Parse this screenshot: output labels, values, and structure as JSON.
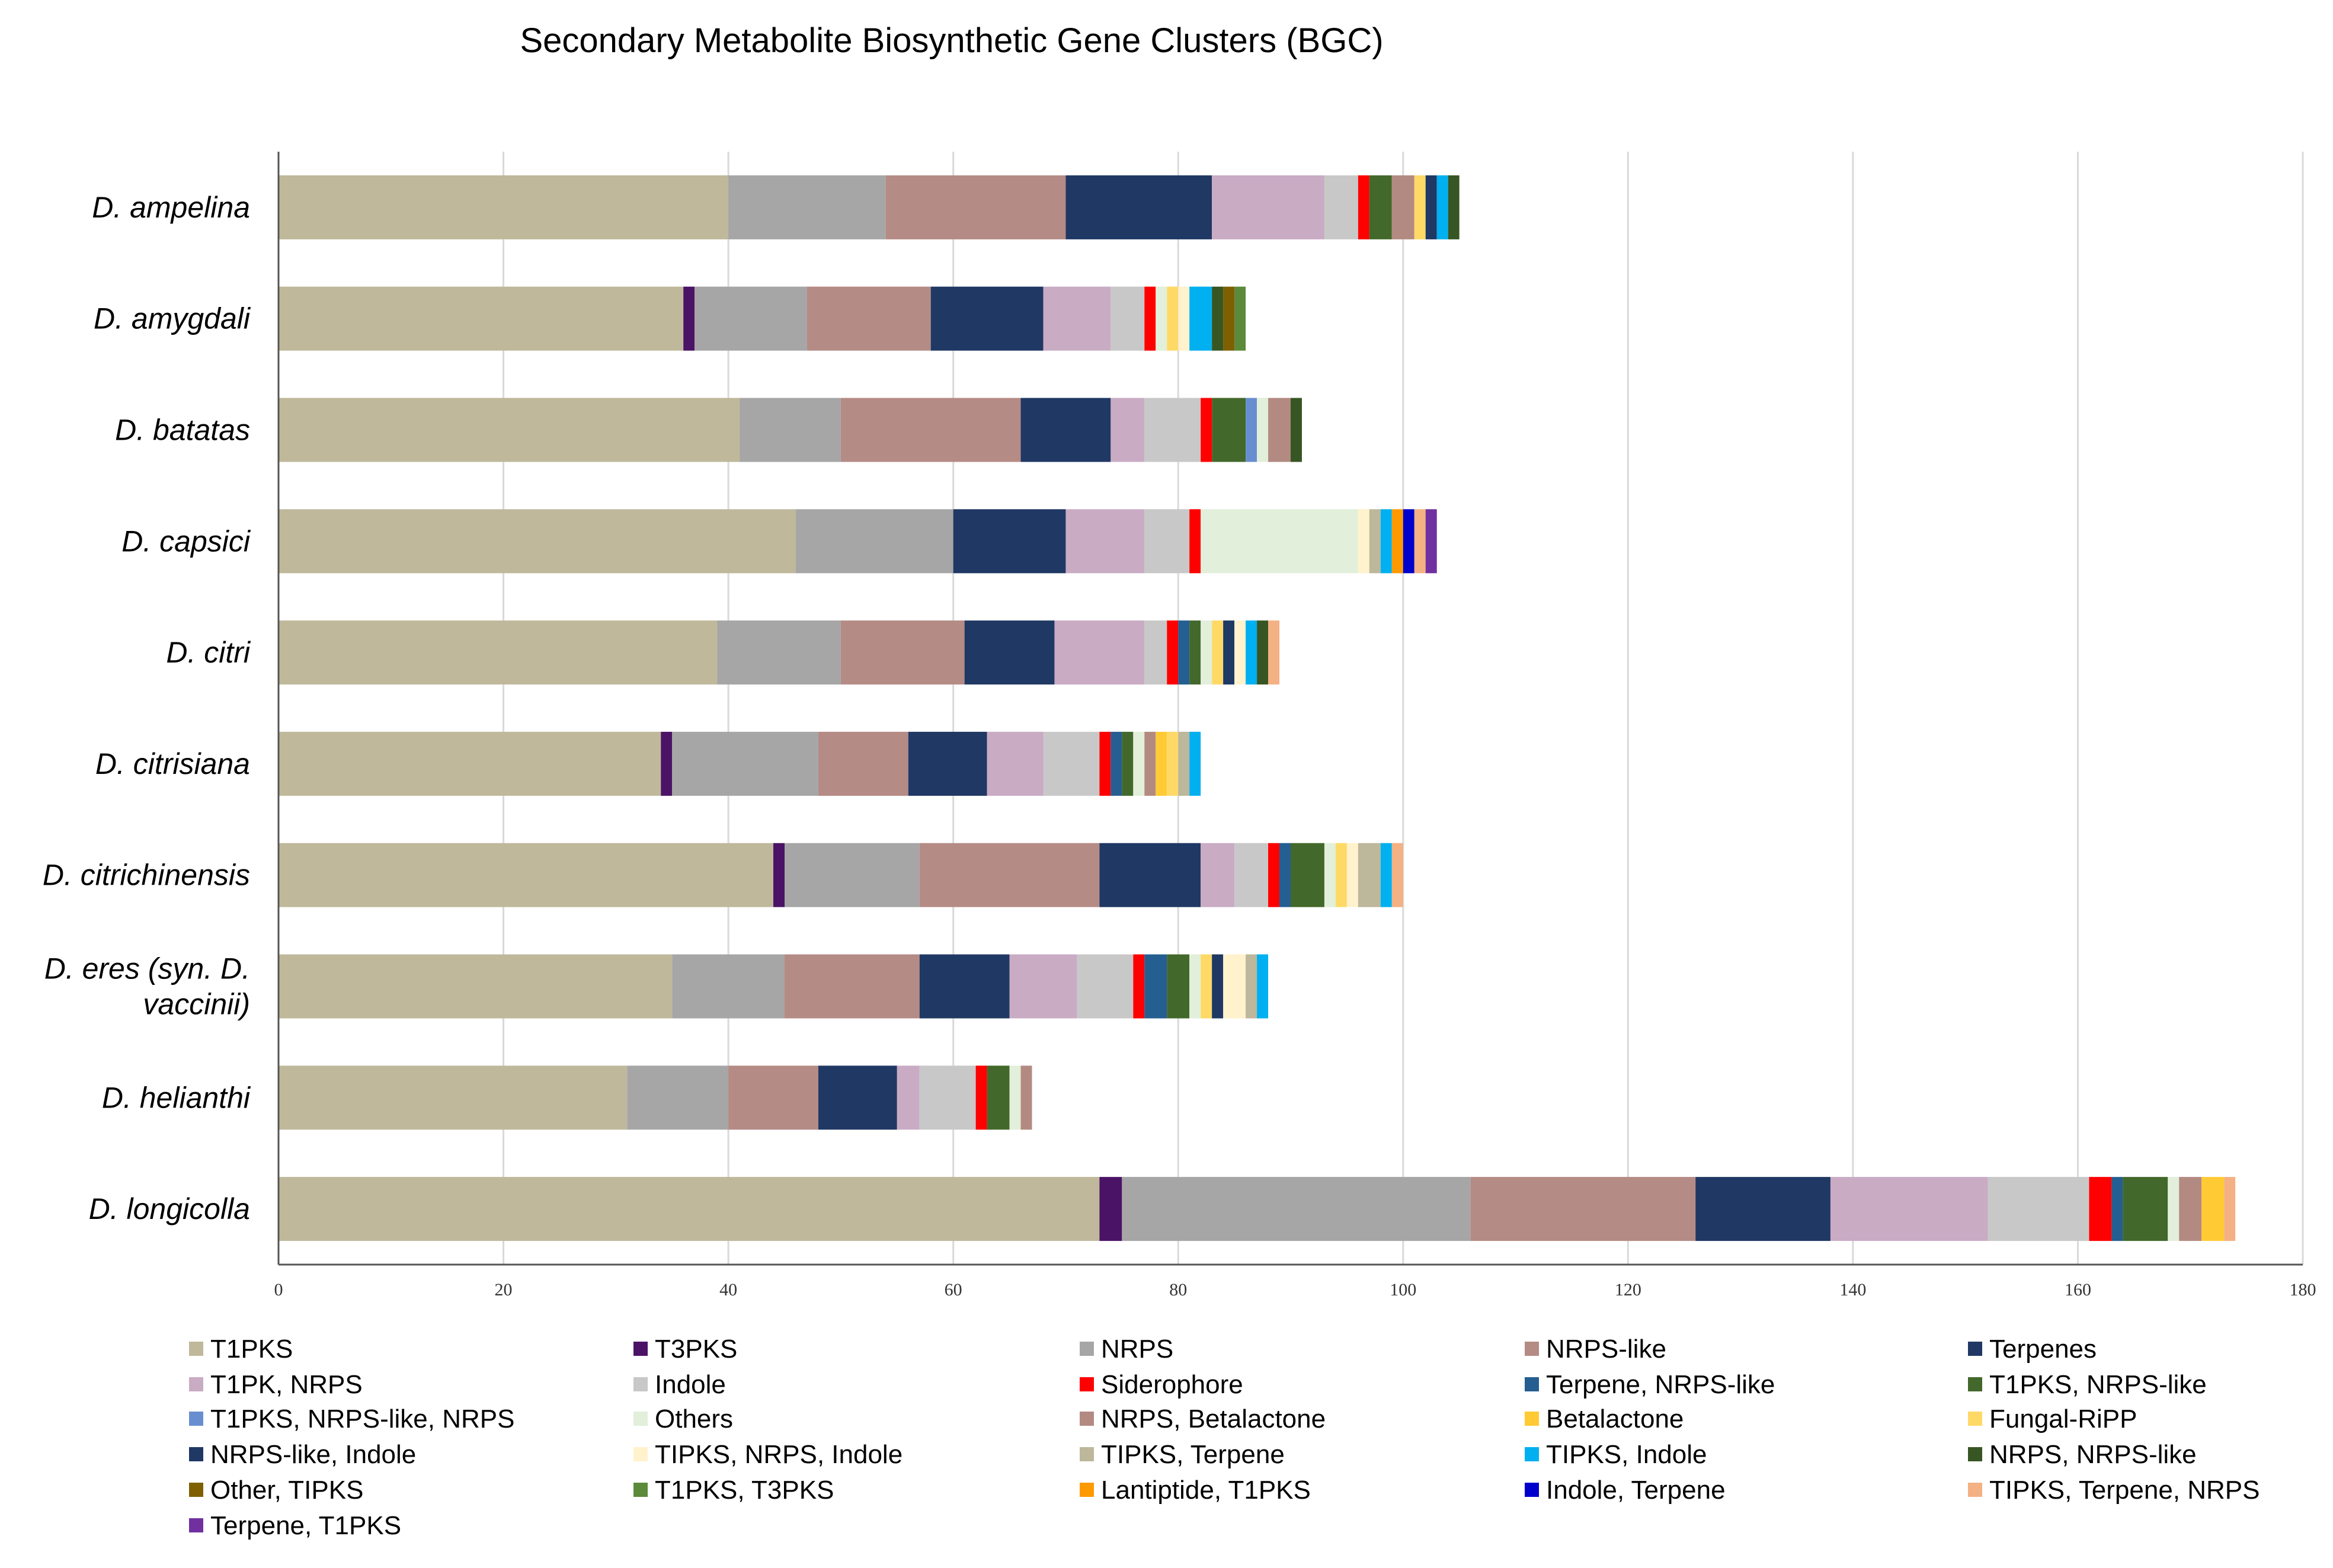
{
  "chart_data": {
    "type": "bar",
    "orientation": "horizontal",
    "stacked": true,
    "title": "Secondary Metabolite Biosynthetic Gene Clusters (BGC)",
    "xlabel": "",
    "ylabel": "",
    "xlim": [
      0,
      180
    ],
    "xticks": [
      0,
      20,
      40,
      60,
      80,
      100,
      120,
      140,
      160,
      180
    ],
    "grid": true,
    "legend_position": "bottom",
    "categories": [
      "D. ampelina",
      "D. amygdali",
      "D. batatas",
      "D. capsici",
      "D. citri",
      "D. citrisiana",
      "D. citrichinensis",
      "D. eres (syn. D.|vaccinii)",
      "D. helianthi",
      "D. longicolla"
    ],
    "series": [
      {
        "name": "T1PKS",
        "color": "#BFB89A",
        "values": [
          40,
          36,
          41,
          46,
          39,
          34,
          44,
          35,
          31,
          73
        ]
      },
      {
        "name": "T3PKS",
        "color": "#4B1366",
        "values": [
          0,
          1,
          0,
          0,
          0,
          1,
          1,
          0,
          0,
          2
        ]
      },
      {
        "name": "NRPS",
        "color": "#A6A6A6",
        "values": [
          14,
          10,
          9,
          14,
          11,
          13,
          12,
          10,
          9,
          31
        ]
      },
      {
        "name": "NRPS-like",
        "color": "#B58B85",
        "values": [
          16,
          11,
          16,
          0,
          11,
          8,
          16,
          12,
          8,
          20
        ]
      },
      {
        "name": "Terpenes",
        "color": "#203864",
        "values": [
          13,
          10,
          8,
          10,
          8,
          7,
          9,
          8,
          7,
          12
        ]
      },
      {
        "name": "T1PK, NRPS",
        "color": "#C9ABC4",
        "values": [
          10,
          6,
          3,
          7,
          8,
          5,
          3,
          6,
          2,
          14
        ]
      },
      {
        "name": "Indole",
        "color": "#C8C8C8",
        "values": [
          3,
          3,
          5,
          4,
          2,
          5,
          3,
          5,
          5,
          9
        ]
      },
      {
        "name": "Siderophore",
        "color": "#FF0000",
        "values": [
          1,
          1,
          1,
          1,
          1,
          1,
          1,
          1,
          1,
          2
        ]
      },
      {
        "name": "Terpene, NRPS-like",
        "color": "#255E91",
        "values": [
          0,
          0,
          0,
          0,
          1,
          1,
          1,
          2,
          0,
          1
        ]
      },
      {
        "name": "T1PKS, NRPS-like",
        "color": "#43682B",
        "values": [
          2,
          0,
          3,
          0,
          1,
          1,
          3,
          2,
          2,
          4
        ]
      },
      {
        "name": "T1PKS, NRPS-like, NRPS",
        "color": "#698ED0",
        "values": [
          0,
          0,
          1,
          0,
          0,
          0,
          0,
          0,
          0,
          0
        ]
      },
      {
        "name": "Others",
        "color": "#E2EFDA",
        "values": [
          0,
          1,
          1,
          14,
          1,
          1,
          1,
          1,
          1,
          1
        ]
      },
      {
        "name": "NRPS, Betalactone",
        "color": "#B38A82",
        "values": [
          2,
          0,
          2,
          0,
          0,
          1,
          0,
          0,
          1,
          2
        ]
      },
      {
        "name": "Betalactone",
        "color": "#FFCA33",
        "values": [
          0,
          0,
          0,
          0,
          0,
          1,
          0,
          0,
          0,
          2
        ]
      },
      {
        "name": "Fungal-RiPP",
        "color": "#FFD966",
        "values": [
          1,
          1,
          0,
          0,
          1,
          1,
          1,
          1,
          0,
          0
        ]
      },
      {
        "name": "NRPS-like, Indole",
        "color": "#1F3864",
        "values": [
          1,
          0,
          0,
          0,
          1,
          0,
          0,
          1,
          0,
          0
        ]
      },
      {
        "name": "TIPKS, NRPS, Indole",
        "color": "#FFF2CC",
        "values": [
          0,
          1,
          0,
          1,
          1,
          0,
          1,
          2,
          0,
          0
        ]
      },
      {
        "name": "TIPKS, Terpene",
        "color": "#BDB79B",
        "values": [
          0,
          0,
          0,
          1,
          0,
          1,
          2,
          1,
          0,
          0
        ]
      },
      {
        "name": "TIPKS, Indole",
        "color": "#00B0F0",
        "values": [
          1,
          2,
          0,
          1,
          1,
          1,
          1,
          1,
          0,
          0
        ]
      },
      {
        "name": "NRPS, NRPS-like",
        "color": "#375623",
        "values": [
          1,
          1,
          1,
          0,
          1,
          0,
          0,
          0,
          0,
          0
        ]
      },
      {
        "name": "Other, TIPKS",
        "color": "#7F6000",
        "values": [
          0,
          1,
          0,
          0,
          0,
          0,
          0,
          0,
          0,
          0
        ]
      },
      {
        "name": "T1PKS, T3PKS",
        "color": "#5B8A3A",
        "values": [
          0,
          1,
          0,
          0,
          0,
          0,
          0,
          0,
          0,
          0
        ]
      },
      {
        "name": "Lantiptide, T1PKS",
        "color": "#FF9900",
        "values": [
          0,
          0,
          0,
          1,
          0,
          0,
          0,
          0,
          0,
          0
        ]
      },
      {
        "name": "Indole, Terpene",
        "color": "#0000CC",
        "values": [
          0,
          0,
          0,
          1,
          0,
          0,
          0,
          0,
          0,
          0
        ]
      },
      {
        "name": "TIPKS, Terpene, NRPS",
        "color": "#F4B183",
        "values": [
          0,
          0,
          0,
          1,
          1,
          0,
          1,
          0,
          0,
          1
        ]
      },
      {
        "name": "Terpene, T1PKS",
        "color": "#7030A0",
        "values": [
          0,
          0,
          0,
          1,
          0,
          0,
          0,
          0,
          0,
          0
        ]
      }
    ]
  }
}
